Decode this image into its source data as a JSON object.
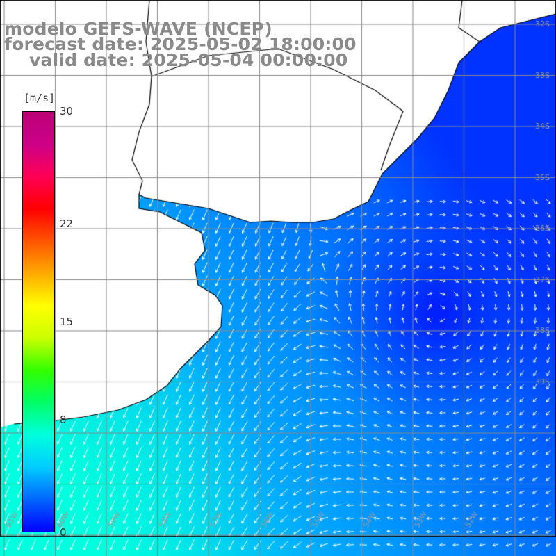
{
  "title": {
    "line1": "modelo GEFS-WAVE (NCEP)",
    "line2": "forecast date: 2025-05-02 18:00:00",
    "line3": "valid date: 2025-05-04 00:00:00"
  },
  "colorbar": {
    "unit": "[m/s]",
    "ticks": [
      {
        "value": 30,
        "label": "30"
      },
      {
        "value": 22,
        "label": "22"
      },
      {
        "value": 15,
        "label": "15"
      },
      {
        "value": 8,
        "label": "8"
      },
      {
        "value": 0,
        "label": "0"
      }
    ],
    "colormap": [
      "#0000ff",
      "#0066ff",
      "#00ccff",
      "#00ffdd",
      "#00ff66",
      "#33ff00",
      "#ccff00",
      "#ffff00",
      "#ffaa00",
      "#ff5500",
      "#ff0000",
      "#ff0055",
      "#cc0088",
      "#bb0077"
    ],
    "range": [
      0,
      30
    ]
  },
  "map": {
    "ocean_wind_color_low": "#0033ff",
    "ocean_wind_color_mid": "#00aaff",
    "ocean_wind_color_high": "#00ffe0",
    "land_color": "#ffffff",
    "grid_color": "#888888",
    "arrow_color": "#ffffff",
    "latitude_labels": [
      "32S",
      "33S",
      "34S",
      "35S",
      "36S",
      "37S",
      "38S",
      "39S"
    ],
    "longitude_labels": [
      "61W",
      "60W",
      "59W",
      "58W",
      "57W",
      "56W",
      "55W",
      "54W",
      "53W",
      "52W"
    ]
  }
}
